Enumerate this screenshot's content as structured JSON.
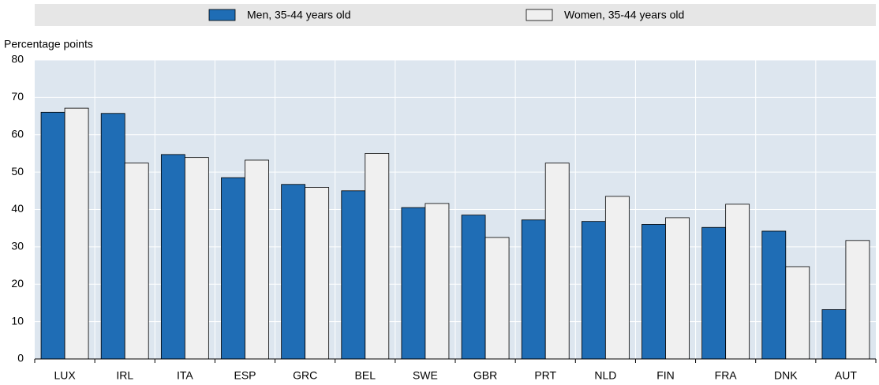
{
  "chart_data": {
    "type": "bar",
    "y_axis_label": "Percentage points",
    "categories": [
      "LUX",
      "IRL",
      "ITA",
      "ESP",
      "GRC",
      "BEL",
      "SWE",
      "GBR",
      "PRT",
      "NLD",
      "FIN",
      "FRA",
      "DNK",
      "AUT"
    ],
    "series": [
      {
        "name": "Men, 35-44 years old",
        "color": "#1f6db5",
        "values": [
          66,
          65.7,
          54.7,
          48.5,
          46.7,
          45,
          40.5,
          38.5,
          37.2,
          36.8,
          36,
          35.2,
          34.2,
          13.2
        ]
      },
      {
        "name": "Women, 35-44 years old",
        "color": "#f0f0f0",
        "values": [
          67.1,
          52.4,
          53.9,
          53.2,
          45.9,
          55,
          41.6,
          32.5,
          52.4,
          43.5,
          37.8,
          41.4,
          24.7,
          31.7
        ]
      }
    ],
    "ylim": [
      0,
      80
    ],
    "yticks": [
      0,
      10,
      20,
      30,
      40,
      50,
      60,
      70,
      80
    ],
    "grid": true
  }
}
